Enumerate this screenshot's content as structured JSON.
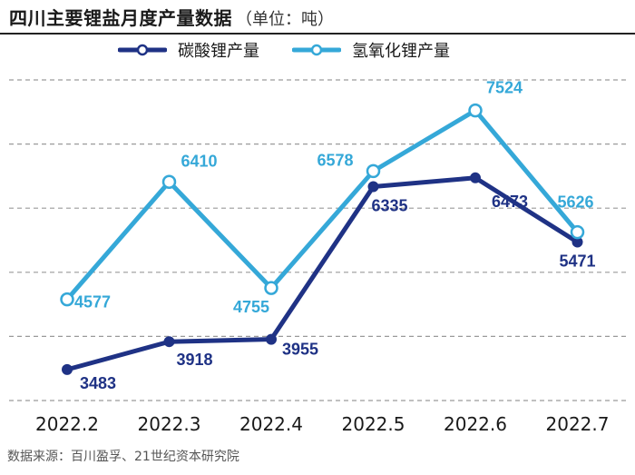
{
  "header": {
    "title": "四川主要锂盐月度产量数据",
    "unit": "（单位：吨）"
  },
  "footer": {
    "source": "数据来源：百川盈孚、21世纪资本研究院"
  },
  "colors": {
    "series_dark": "#1f3285",
    "series_light": "#35a8d8",
    "grid": "#9a9a9a",
    "text": "#1a1a1a"
  },
  "chart_data": {
    "type": "line",
    "title": "四川主要锂盐月度产量数据",
    "subtitle": "（单位：吨）",
    "x": [
      "2022.2",
      "2022.3",
      "2022.4",
      "2022.5",
      "2022.6",
      "2022.7"
    ],
    "series": [
      {
        "name": "碳酸锂产量",
        "values": [
          3483,
          3918,
          3955,
          6335,
          6473,
          5471
        ],
        "labels": [
          "3483",
          "3918",
          "3955",
          "6335",
          "6473",
          "5471"
        ],
        "marker": "filled-circle",
        "color": "#1f3285"
      },
      {
        "name": "氢氧化锂产量",
        "values": [
          4577,
          6410,
          4755,
          6578,
          7524,
          5626
        ],
        "labels": [
          "4577",
          "6410",
          "4755",
          "6578",
          "7524",
          "5626"
        ],
        "marker": "hollow-circle",
        "color": "#35a8d8"
      }
    ],
    "ylim": [
      3000,
      8000
    ],
    "y_gridlines": [
      3000,
      4000,
      5000,
      6000,
      7000,
      8000
    ],
    "y_tick_labels_shown": false,
    "grid": "horizontal-dashed",
    "legend": "top"
  }
}
